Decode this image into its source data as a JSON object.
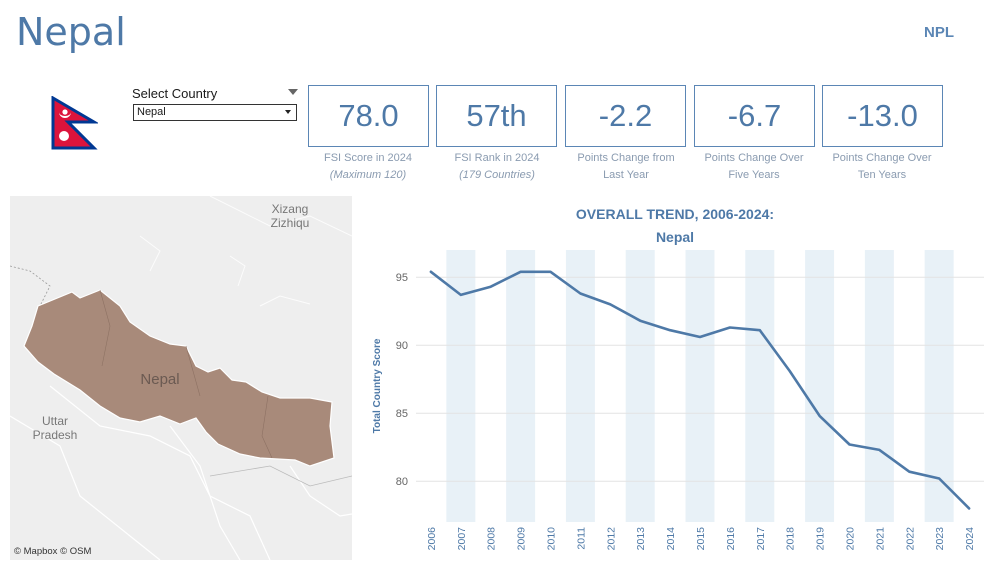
{
  "header": {
    "title": "Nepal",
    "code": "NPL"
  },
  "selector": {
    "label": "Select Country",
    "value": "Nepal"
  },
  "kpis": [
    {
      "value": "78.0",
      "caption1": "FSI Score in 2024",
      "caption2": "(Maximum 120)",
      "italic": true
    },
    {
      "value": "57th",
      "caption1": "FSI Rank in 2024",
      "caption2": "(179 Countries)",
      "italic": true
    },
    {
      "value": "-2.2",
      "caption1": "Points Change from",
      "caption2": "Last Year",
      "italic": false
    },
    {
      "value": "-6.7",
      "caption1": "Points Change Over",
      "caption2": "Five Years",
      "italic": false
    },
    {
      "value": "-13.0",
      "caption1": "Points Change Over",
      "caption2": "Ten Years",
      "italic": false
    }
  ],
  "map": {
    "country_label": "Nepal",
    "label_xizang_1": "Xizang",
    "label_xizang_2": "Zizhiqu",
    "label_uttar_1": "Uttar",
    "label_uttar_2": "Pradesh",
    "attribution": "© Mapbox  © OSM",
    "country_color": "#a88a7a",
    "background_color": "#eeeeee"
  },
  "flag": {
    "red": "#dc143c",
    "blue": "#003893"
  },
  "chart_data": {
    "type": "line",
    "title": "OVERALL TREND, 2006-2024:",
    "subtitle": "Nepal",
    "ylabel": "Total Country Score",
    "xlabel": "",
    "x": [
      "2006",
      "2007",
      "2008",
      "2009",
      "2010",
      "2011",
      "2012",
      "2013",
      "2014",
      "2015",
      "2016",
      "2017",
      "2018",
      "2019",
      "2020",
      "2021",
      "2022",
      "2023",
      "2024"
    ],
    "values": [
      95.4,
      93.7,
      94.3,
      95.4,
      95.4,
      93.8,
      93.0,
      91.8,
      91.1,
      90.6,
      91.3,
      91.1,
      88.1,
      84.8,
      82.7,
      82.3,
      80.7,
      80.2,
      78.0
    ],
    "yticks": [
      80,
      85,
      90,
      95
    ],
    "ylim": [
      77,
      97
    ],
    "shaded_years": [
      "2007",
      "2009",
      "2011",
      "2013",
      "2015",
      "2017",
      "2019",
      "2021",
      "2023"
    ],
    "line_color": "#4e79a7",
    "band_color": "#e8f1f7",
    "grid": true
  }
}
